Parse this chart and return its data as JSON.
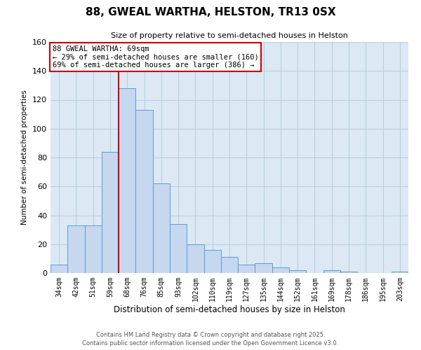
{
  "title": "88, GWEAL WARTHA, HELSTON, TR13 0SX",
  "subtitle": "Size of property relative to semi-detached houses in Helston",
  "xlabel": "Distribution of semi-detached houses by size in Helston",
  "ylabel": "Number of semi-detached properties",
  "bar_labels": [
    "34sqm",
    "42sqm",
    "51sqm",
    "59sqm",
    "68sqm",
    "76sqm",
    "85sqm",
    "93sqm",
    "102sqm",
    "110sqm",
    "119sqm",
    "127sqm",
    "135sqm",
    "144sqm",
    "152sqm",
    "161sqm",
    "169sqm",
    "178sqm",
    "186sqm",
    "195sqm",
    "203sqm"
  ],
  "bar_values": [
    6,
    33,
    33,
    84,
    128,
    113,
    62,
    34,
    20,
    16,
    11,
    6,
    7,
    4,
    2,
    0,
    2,
    1,
    0,
    0,
    1
  ],
  "bar_color": "#c5d8ef",
  "bar_edge_color": "#5b9bd5",
  "plot_bg_color": "#dce9f5",
  "ylim": [
    0,
    160
  ],
  "yticks": [
    0,
    20,
    40,
    60,
    80,
    100,
    120,
    140,
    160
  ],
  "vline_index": 4,
  "vline_color": "#cc0000",
  "annotation_title": "88 GWEAL WARTHA: 69sqm",
  "annotation_line1": "← 29% of semi-detached houses are smaller (160)",
  "annotation_line2": "69% of semi-detached houses are larger (386) →",
  "annotation_box_color": "#ffffff",
  "annotation_box_edge": "#cc0000",
  "footer1": "Contains HM Land Registry data © Crown copyright and database right 2025.",
  "footer2": "Contains public sector information licensed under the Open Government Licence v3.0.",
  "background_color": "#ffffff",
  "grid_color": "#b8cfe0"
}
